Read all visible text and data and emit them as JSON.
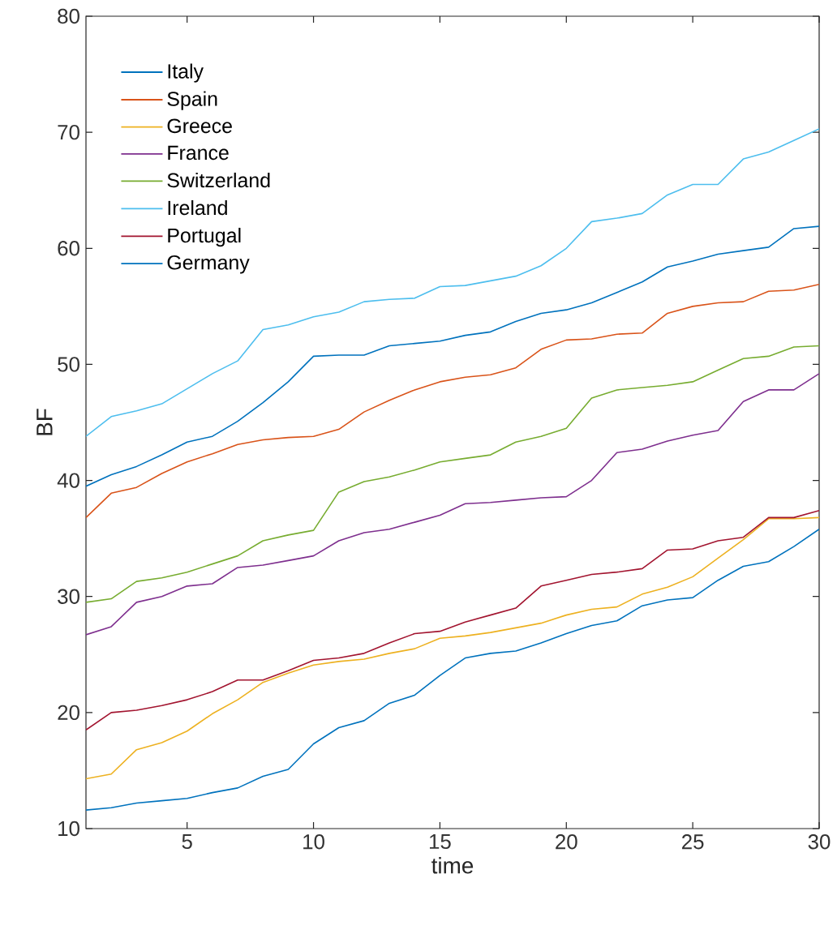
{
  "chart_data": {
    "type": "line",
    "xlabel": "time",
    "ylabel": "BF",
    "x": [
      1,
      2,
      3,
      4,
      5,
      6,
      7,
      8,
      9,
      10,
      11,
      12,
      13,
      14,
      15,
      16,
      17,
      18,
      19,
      20,
      21,
      22,
      23,
      24,
      25,
      26,
      27,
      28,
      29,
      30
    ],
    "xlim": [
      1,
      30
    ],
    "ylim": [
      10,
      80
    ],
    "xticks": [
      5,
      10,
      15,
      20,
      25,
      30
    ],
    "yticks": [
      10,
      20,
      30,
      40,
      50,
      60,
      70,
      80
    ],
    "grid": false,
    "legend": "top left",
    "line_style": "solid",
    "series": [
      {
        "name": "Italy",
        "color": "#0072bd",
        "values": [
          11.6,
          11.8,
          12.2,
          12.4,
          12.6,
          13.1,
          13.5,
          14.5,
          15.1,
          17.3,
          18.7,
          19.3,
          20.8,
          21.5,
          23.2,
          24.7,
          25.1,
          25.3,
          26.0,
          26.8,
          27.5,
          27.9,
          29.2,
          29.7,
          29.9,
          31.4,
          32.6,
          33.0,
          34.3,
          35.8
        ]
      },
      {
        "name": "Spain",
        "color": "#d95319",
        "values": [
          36.8,
          38.9,
          39.4,
          40.6,
          41.6,
          42.3,
          43.1,
          43.5,
          43.7,
          43.8,
          44.4,
          45.9,
          46.9,
          47.8,
          48.5,
          48.9,
          49.1,
          49.7,
          51.3,
          52.1,
          52.2,
          52.6,
          52.7,
          54.4,
          55.0,
          55.3,
          55.4,
          56.3,
          56.4,
          56.9
        ]
      },
      {
        "name": "Greece",
        "color": "#edb120",
        "values": [
          14.3,
          14.7,
          16.8,
          17.4,
          18.4,
          19.9,
          21.1,
          22.6,
          23.4,
          24.1,
          24.4,
          24.6,
          25.1,
          25.5,
          26.4,
          26.6,
          26.9,
          27.3,
          27.7,
          28.4,
          28.9,
          29.1,
          30.2,
          30.8,
          31.7,
          33.3,
          34.9,
          36.7,
          36.7,
          36.8
        ]
      },
      {
        "name": "France",
        "color": "#7e2f8e",
        "values": [
          26.7,
          27.4,
          29.5,
          30.0,
          30.9,
          31.1,
          32.5,
          32.7,
          33.1,
          33.5,
          34.8,
          35.5,
          35.8,
          36.4,
          37.0,
          38.0,
          38.1,
          38.3,
          38.5,
          38.6,
          40.0,
          42.4,
          42.7,
          43.4,
          43.9,
          44.3,
          46.8,
          47.8,
          47.8,
          49.2
        ]
      },
      {
        "name": "Switzerland",
        "color": "#77ac30",
        "values": [
          29.5,
          29.8,
          31.3,
          31.6,
          32.1,
          32.8,
          33.5,
          34.8,
          35.3,
          35.7,
          39.0,
          39.9,
          40.3,
          40.9,
          41.6,
          41.9,
          42.2,
          43.3,
          43.8,
          44.5,
          47.1,
          47.8,
          48.0,
          48.2,
          48.5,
          49.5,
          50.5,
          50.7,
          51.5,
          51.6
        ]
      },
      {
        "name": "Ireland",
        "color": "#4dbeee",
        "values": [
          43.8,
          45.5,
          46.0,
          46.6,
          47.9,
          49.2,
          50.3,
          53.0,
          53.4,
          54.1,
          54.5,
          55.4,
          55.6,
          55.7,
          56.7,
          56.8,
          57.2,
          57.6,
          58.5,
          60.0,
          62.3,
          62.6,
          63.0,
          64.6,
          65.5,
          65.5,
          67.7,
          68.3,
          69.3,
          70.3
        ]
      },
      {
        "name": "Portugal",
        "color": "#a2142f",
        "values": [
          18.5,
          20.0,
          20.2,
          20.6,
          21.1,
          21.8,
          22.8,
          22.8,
          23.6,
          24.5,
          24.7,
          25.1,
          26.0,
          26.8,
          27.0,
          27.8,
          28.4,
          29.0,
          30.9,
          31.4,
          31.9,
          32.1,
          32.4,
          34.0,
          34.1,
          34.8,
          35.1,
          36.8,
          36.8,
          37.4
        ]
      },
      {
        "name": "Germany",
        "color": "#0072bd",
        "values": [
          39.5,
          40.5,
          41.2,
          42.2,
          43.3,
          43.8,
          45.1,
          46.7,
          48.5,
          50.7,
          50.8,
          50.8,
          51.6,
          51.8,
          52.0,
          52.5,
          52.8,
          53.7,
          54.4,
          54.7,
          55.3,
          56.2,
          57.1,
          58.4,
          58.9,
          59.5,
          59.8,
          60.1,
          61.7,
          61.9
        ]
      }
    ]
  }
}
